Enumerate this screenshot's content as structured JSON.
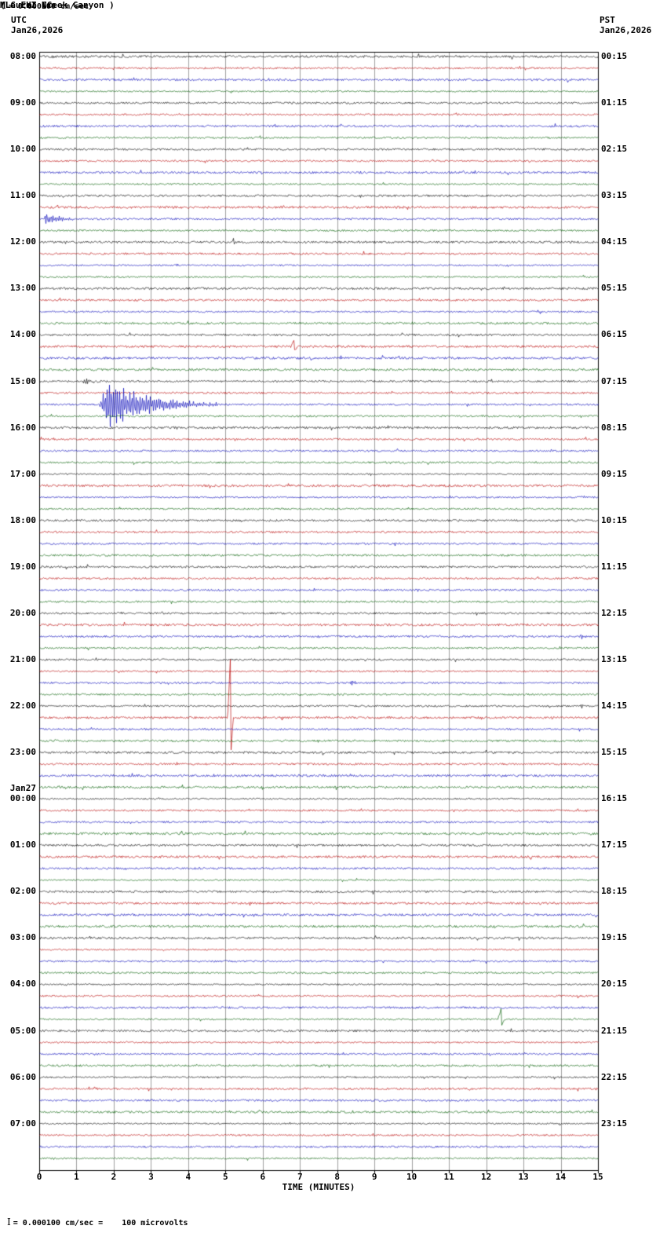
{
  "header": {
    "title": "MLC EHZ NC",
    "subtitle": "(Laurel Creek Canyon )",
    "scale_label": "= 0.000100 cm/sec",
    "left_tz": "UTC",
    "left_date": "Jan26,2026",
    "right_tz": "PST",
    "right_date": "Jan26,2026"
  },
  "footer": {
    "xlabel": "TIME (MINUTES)",
    "note": "= 0.000100 cm/sec =    100 microvolts"
  },
  "chart_data": {
    "type": "line",
    "subtype": "helicorder-seismogram",
    "minutes_per_row": 15,
    "rows_per_hour": 4,
    "total_rows": 96,
    "x_range": [
      0,
      15
    ],
    "x_ticks": [
      "0",
      "1",
      "2",
      "3",
      "4",
      "5",
      "6",
      "7",
      "8",
      "9",
      "10",
      "11",
      "12",
      "13",
      "14",
      "15"
    ],
    "left_labels": [
      "08:00",
      "09:00",
      "10:00",
      "11:00",
      "12:00",
      "13:00",
      "14:00",
      "15:00",
      "16:00",
      "17:00",
      "18:00",
      "19:00",
      "20:00",
      "21:00",
      "22:00",
      "23:00",
      "00:00",
      "01:00",
      "02:00",
      "03:00",
      "04:00",
      "05:00",
      "06:00",
      "07:00"
    ],
    "right_labels": [
      "00:15",
      "01:15",
      "02:15",
      "03:15",
      "04:15",
      "05:15",
      "06:15",
      "07:15",
      "08:15",
      "09:15",
      "10:15",
      "11:15",
      "12:15",
      "13:15",
      "14:15",
      "15:15",
      "16:15",
      "17:15",
      "18:15",
      "19:15",
      "20:15",
      "21:15",
      "22:15",
      "23:15"
    ],
    "date_break": {
      "label": "Jan27",
      "before_index": 16
    },
    "trace_colors": [
      "#000000",
      "#b80000",
      "#0000b8",
      "#005c00"
    ],
    "grid_color": "#a0a0a0",
    "noise_amplitude": 1.1,
    "events": [
      {
        "row": 14,
        "minute": 0.1,
        "duration": 1.2,
        "amplitude": 9,
        "type": "burst"
      },
      {
        "row": 16,
        "minute": 5.15,
        "duration": 0.12,
        "amplitude": 4,
        "type": "spike"
      },
      {
        "row": 25,
        "minute": 6.75,
        "duration": 0.18,
        "amplitude": 9,
        "type": "spike"
      },
      {
        "row": 28,
        "minute": 1.15,
        "duration": 0.7,
        "amplitude": 7,
        "type": "burst"
      },
      {
        "row": 30,
        "minute": 1.62,
        "duration": 3.2,
        "amplitude": 50,
        "type": "burst"
      },
      {
        "row": 38,
        "minute": 14.55,
        "duration": 0.35,
        "amplitude": 5,
        "type": "burst"
      },
      {
        "row": 47,
        "minute": 7.05,
        "duration": 0.3,
        "amplitude": 5,
        "type": "burst"
      },
      {
        "row": 50,
        "minute": 14.5,
        "duration": 0.35,
        "amplitude": 7,
        "type": "burst"
      },
      {
        "row": 54,
        "minute": 8.35,
        "duration": 0.4,
        "amplitude": 6,
        "type": "burst"
      },
      {
        "row": 56,
        "minute": 14.5,
        "duration": 0.25,
        "amplitude": 5,
        "type": "burst"
      },
      {
        "row": 57,
        "minute": 5.05,
        "duration": 0.15,
        "amplitude": 80,
        "type": "spike"
      },
      {
        "row": 83,
        "minute": 12.3,
        "duration": 0.18,
        "amplitude": 13,
        "type": "spike"
      }
    ]
  }
}
